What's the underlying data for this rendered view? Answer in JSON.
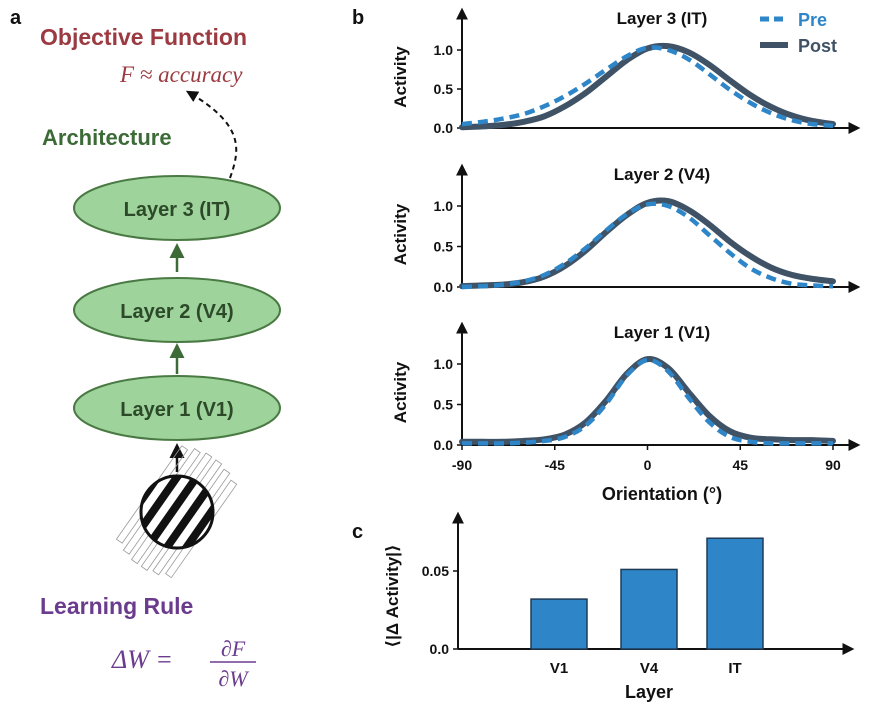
{
  "panel_a": {
    "label": "a",
    "objective_title": "Objective Function",
    "objective_eq": "F ≈ accuracy",
    "architecture_title": "Architecture",
    "layers": [
      "Layer 3 (IT)",
      "Layer 2 (V4)",
      "Layer 1 (V1)"
    ],
    "learning_title": "Learning Rule",
    "learning_lhs": "ΔW =",
    "learning_num": "∂F",
    "learning_den": "∂W"
  },
  "panel_b": {
    "label": "b"
  },
  "panel_c": {
    "label": "c"
  },
  "colors": {
    "objective": "#9b3a40",
    "architecture": "#3d6b37",
    "learning": "#6b3b8e",
    "ellipse_fill": "#9fd39c",
    "ellipse_stroke": "#4a7a44",
    "arrow": "#3d6b37",
    "pre": "#2e86c8",
    "post": "#3f5266",
    "bar": "#2e86c8"
  },
  "chart_data": [
    {
      "type": "line",
      "title": "Layer 3 (IT)",
      "xlabel": "",
      "ylabel": "Activity",
      "xlim": [
        -90,
        90
      ],
      "ylim": [
        0,
        1.1
      ],
      "yticks": [
        "0.0",
        "0.5",
        "1.0"
      ],
      "xticks": [],
      "legend": {
        "position": "top-right",
        "entries": [
          "Pre",
          "Post"
        ]
      },
      "x": [
        -90,
        -80,
        -70,
        -60,
        -50,
        -40,
        -30,
        -20,
        -10,
        0,
        10,
        20,
        30,
        40,
        50,
        60,
        70,
        80,
        90
      ],
      "series": [
        {
          "name": "Pre",
          "style": "dashed",
          "values": [
            0.05,
            0.08,
            0.12,
            0.18,
            0.28,
            0.41,
            0.57,
            0.75,
            0.92,
            1.03,
            1.0,
            0.88,
            0.69,
            0.49,
            0.32,
            0.19,
            0.1,
            0.05,
            0.03
          ]
        },
        {
          "name": "Post",
          "style": "solid",
          "values": [
            0.01,
            0.02,
            0.04,
            0.08,
            0.15,
            0.28,
            0.45,
            0.66,
            0.87,
            1.02,
            1.05,
            0.97,
            0.81,
            0.61,
            0.42,
            0.27,
            0.16,
            0.09,
            0.05
          ]
        }
      ]
    },
    {
      "type": "line",
      "title": "Layer 2 (V4)",
      "xlabel": "",
      "ylabel": "Activity",
      "xlim": [
        -90,
        90
      ],
      "ylim": [
        0,
        1.1
      ],
      "yticks": [
        "0.0",
        "0.5",
        "1.0"
      ],
      "xticks": [],
      "x": [
        -90,
        -80,
        -70,
        -60,
        -50,
        -40,
        -30,
        -20,
        -10,
        0,
        10,
        20,
        30,
        40,
        50,
        60,
        70,
        80,
        90
      ],
      "series": [
        {
          "name": "Pre",
          "style": "dashed",
          "values": [
            0.0,
            0.01,
            0.03,
            0.07,
            0.15,
            0.29,
            0.48,
            0.7,
            0.9,
            1.02,
            1.0,
            0.86,
            0.64,
            0.42,
            0.23,
            0.11,
            0.04,
            0.02,
            0.01
          ]
        },
        {
          "name": "Post",
          "style": "solid",
          "values": [
            0.01,
            0.02,
            0.03,
            0.06,
            0.13,
            0.26,
            0.45,
            0.68,
            0.89,
            1.04,
            1.06,
            0.95,
            0.77,
            0.56,
            0.38,
            0.24,
            0.15,
            0.1,
            0.07
          ]
        }
      ]
    },
    {
      "type": "line",
      "title": "Layer 1 (V1)",
      "xlabel": "Orientation (°)",
      "ylabel": "Activity",
      "xlim": [
        -90,
        90
      ],
      "ylim": [
        0,
        1.1
      ],
      "yticks": [
        "0.0",
        "0.5",
        "1.0"
      ],
      "xticks": [
        "-90",
        "-45",
        "0",
        "45",
        "90"
      ],
      "x": [
        -90,
        -80,
        -70,
        -60,
        -50,
        -40,
        -30,
        -20,
        -10,
        0,
        10,
        20,
        30,
        40,
        50,
        60,
        70,
        80,
        90
      ],
      "series": [
        {
          "name": "Pre",
          "style": "dashed",
          "values": [
            0.02,
            0.02,
            0.02,
            0.03,
            0.05,
            0.1,
            0.24,
            0.51,
            0.86,
            1.05,
            0.91,
            0.58,
            0.28,
            0.1,
            0.04,
            0.02,
            0.02,
            0.02,
            0.02
          ]
        },
        {
          "name": "Post",
          "style": "solid",
          "values": [
            0.04,
            0.04,
            0.04,
            0.05,
            0.07,
            0.13,
            0.28,
            0.55,
            0.88,
            1.06,
            0.95,
            0.65,
            0.36,
            0.17,
            0.09,
            0.07,
            0.06,
            0.06,
            0.05
          ]
        }
      ]
    },
    {
      "type": "bar",
      "title": "",
      "xlabel": "Layer",
      "ylabel": "⟨|Δ Activity|⟩",
      "categories": [
        "V1",
        "V4",
        "IT"
      ],
      "values": [
        0.032,
        0.051,
        0.071
      ],
      "ylim": [
        0,
        0.075
      ],
      "yticks": [
        "0.0",
        "0.05"
      ]
    }
  ]
}
